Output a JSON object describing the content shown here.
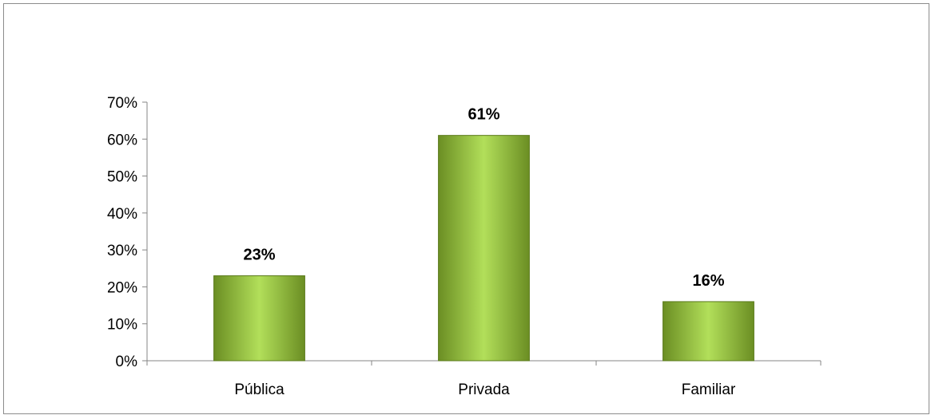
{
  "chart_data": {
    "type": "bar",
    "title": "",
    "xlabel": "",
    "ylabel": "",
    "categories": [
      "Pública",
      "Privada",
      "Familiar"
    ],
    "values": [
      23,
      61,
      16
    ],
    "data_labels": [
      "23%",
      "61%",
      "16%"
    ],
    "ylim": [
      0,
      70
    ],
    "y_ticks": [
      0,
      10,
      20,
      30,
      40,
      50,
      60,
      70
    ],
    "y_tick_labels": [
      "0%",
      "10%",
      "20%",
      "30%",
      "40%",
      "50%",
      "60%",
      "70%"
    ],
    "grid": false,
    "legend": "none",
    "colors": {
      "bar_light": "#b2df5a",
      "bar_dark": "#6b8e23",
      "bar_edge": "#5a7a1a",
      "axis": "#868686"
    }
  }
}
